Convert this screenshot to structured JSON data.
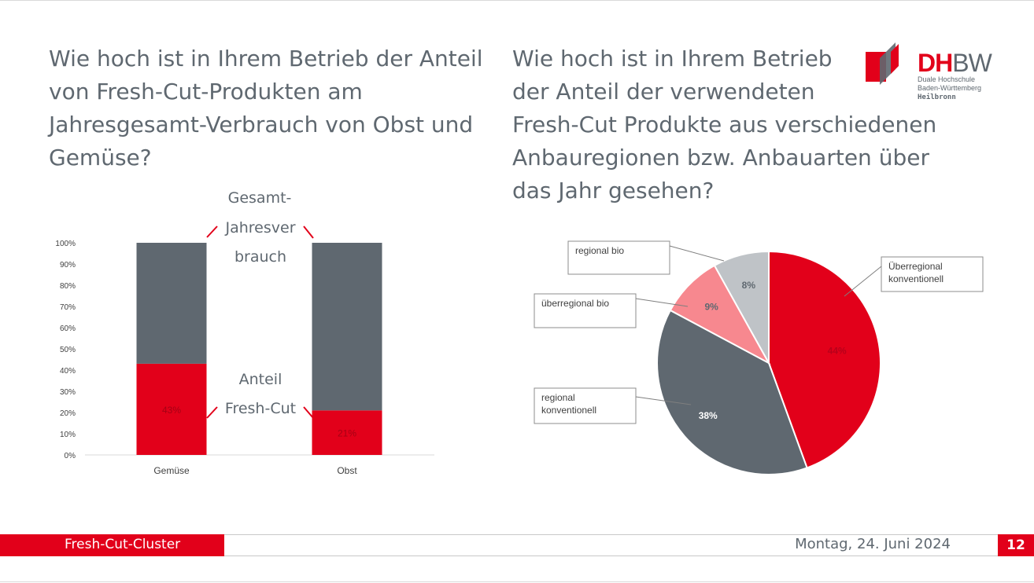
{
  "slide": {
    "question_left": "Wie hoch ist in Ihrem Betrieb der Anteil\nvon Fresh-Cut-Produkten am\nJahresgesamt-Verbrauch von Obst und\nGemüse?",
    "question_right": "Wie hoch ist in Ihrem Betrieb\nder Anteil der verwendeten\nFresh-Cut Produkte aus verschiedenen\nAnbauregionen bzw. Anbauarten über\ndas Jahr gesehen?"
  },
  "logo": {
    "dh": "DH",
    "bw": "BW",
    "line1": "Duale Hochschule",
    "line2": "Baden-Württemberg",
    "city": "Heilbronn"
  },
  "annotations": {
    "total_line1": "Gesamt-",
    "total_line2": "Jahresver",
    "total_line3": "brauch",
    "share_line1": "Anteil",
    "share_line2": "Fresh-Cut"
  },
  "footer": {
    "title": "Fresh-Cut-Cluster",
    "date": "Montag, 24. Juni 2024",
    "page": "12"
  },
  "colors": {
    "red": "#e2001a",
    "gray": "#5f6870",
    "pink": "#f7888f",
    "lightgray": "#bfc3c7"
  },
  "chart_data": [
    {
      "type": "bar",
      "stacked": true,
      "categories": [
        "Gemüse",
        "Obst"
      ],
      "series": [
        {
          "values": [
            43,
            21
          ],
          "color": "#e2001a",
          "labels": [
            "43%",
            "21%"
          ]
        },
        {
          "values": [
            57,
            79
          ],
          "color": "#5f6870"
        }
      ],
      "ylim": [
        0,
        100
      ],
      "yticks": [
        "0%",
        "10%",
        "20%",
        "30%",
        "40%",
        "50%",
        "60%",
        "70%",
        "80%",
        "90%",
        "100%"
      ]
    },
    {
      "type": "pie",
      "slices": [
        {
          "label": "Überregional konventionell",
          "value": 44,
          "display": "44%",
          "color": "#e2001a"
        },
        {
          "label": "regional konventionell",
          "value": 38,
          "display": "38%",
          "color": "#5f6870"
        },
        {
          "label": "überregional bio",
          "value": 9,
          "display": "9%",
          "color": "#f7888f"
        },
        {
          "label": "regional bio",
          "value": 8,
          "display": "8%",
          "color": "#bfc3c7"
        }
      ]
    }
  ]
}
